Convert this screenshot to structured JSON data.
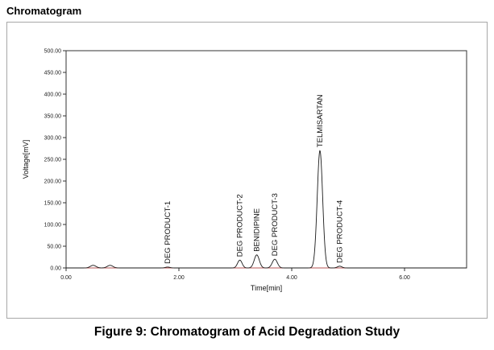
{
  "window": {
    "title": "Chromatogram"
  },
  "caption": "Figure 9: Chromatogram of Acid Degradation Study",
  "colors": {
    "trace": "#1a1a1a",
    "baseline": "#e06060",
    "frame": "#a8a8a8",
    "axis": "#333333"
  },
  "chart_data": {
    "type": "line",
    "title": "Chromatogram",
    "xlabel": "Time[min]",
    "ylabel": "Voltage[mV]",
    "xlim": [
      0,
      7.1
    ],
    "ylim": [
      0,
      500
    ],
    "x_ticks": [
      0,
      2,
      4,
      6
    ],
    "x_tick_labels": [
      "0.00",
      "2.00",
      "4.00",
      "6.00"
    ],
    "y_ticks": [
      0,
      50,
      100,
      150,
      200,
      250,
      300,
      350,
      400,
      450,
      500
    ],
    "y_tick_labels": [
      "0.00",
      "50.00",
      "100.00",
      "150.00",
      "200.00",
      "250.00",
      "300.00",
      "350.00",
      "400.00",
      "450.00",
      "500.00"
    ],
    "grid": false,
    "peaks": [
      {
        "time": 0.48,
        "height": 6,
        "width": 0.05
      },
      {
        "time": 0.78,
        "height": 6,
        "width": 0.05
      },
      {
        "name": "DEG PRODUCT-1",
        "time": 1.8,
        "height": 2,
        "width": 0.04
      },
      {
        "name": "DEG PRODUCT-2",
        "time": 3.08,
        "height": 18,
        "width": 0.04
      },
      {
        "name": "BENIDIPINE",
        "time": 3.38,
        "height": 30,
        "width": 0.045
      },
      {
        "name": "DEG PRODUCT-3",
        "time": 3.7,
        "height": 20,
        "width": 0.045
      },
      {
        "name": "TELMISARTAN",
        "time": 4.5,
        "height": 270,
        "width": 0.048
      },
      {
        "name": "DEG PRODUCT-4",
        "time": 4.85,
        "height": 4,
        "width": 0.04
      }
    ]
  }
}
